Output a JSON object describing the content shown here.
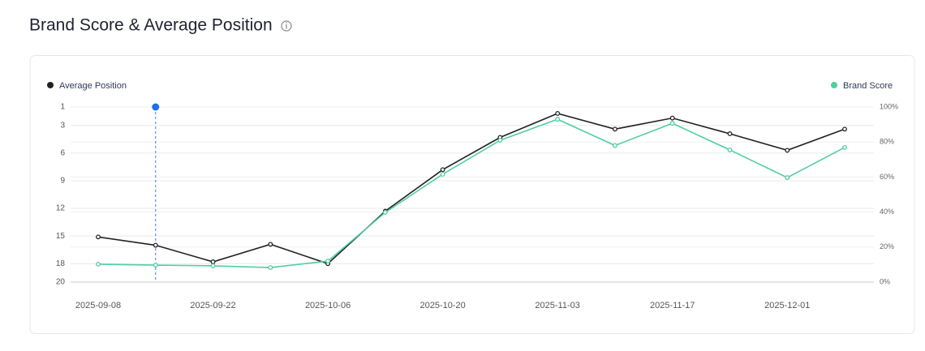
{
  "chart_data": {
    "type": "line",
    "title": "Brand Score & Average Position",
    "categories": [
      "2025-09-08",
      null,
      "2025-09-22",
      null,
      "2025-10-06",
      null,
      "2025-10-20",
      null,
      "2025-11-03",
      null,
      "2025-11-17",
      null,
      "2025-12-01",
      null
    ],
    "series": [
      {
        "name": "Average Position",
        "color": "#222222",
        "axis": "y",
        "values": [
          15.1,
          16,
          17.8,
          15.9,
          18,
          12.3,
          7.8,
          4.3,
          1.7,
          3.4,
          2.2,
          3.9,
          5.7,
          3.4
        ]
      },
      {
        "name": "Brand Score",
        "color": "#4fcfa0",
        "axis": "y2",
        "values": [
          10.2,
          9.7,
          9.3,
          8.3,
          12,
          39.8,
          61.6,
          81,
          93,
          78,
          90.7,
          75.5,
          59.7,
          76.9
        ]
      }
    ],
    "ylim": [
      1,
      20
    ],
    "y_inverted": true,
    "yticks": [
      1,
      3,
      6,
      9,
      12,
      15,
      18,
      20
    ],
    "y2lim": [
      0,
      100
    ],
    "y2ticks": [
      {
        "value": 0,
        "label": "0%"
      },
      {
        "value": 20,
        "label": "20%"
      },
      {
        "value": 40,
        "label": "40%"
      },
      {
        "value": 60,
        "label": "60%"
      },
      {
        "value": 80,
        "label": "80%"
      },
      {
        "value": 100,
        "label": "100%"
      }
    ],
    "grid": true
  }
}
